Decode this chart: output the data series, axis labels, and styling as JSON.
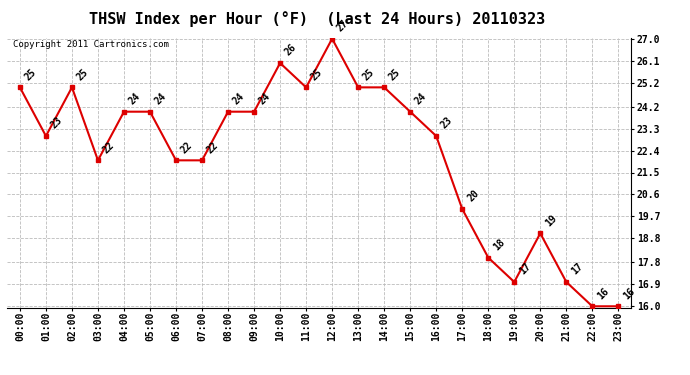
{
  "title": "THSW Index per Hour (°F)  (Last 24 Hours) 20110323",
  "copyright": "Copyright 2011 Cartronics.com",
  "hours": [
    "00:00",
    "01:00",
    "02:00",
    "03:00",
    "04:00",
    "05:00",
    "06:00",
    "07:00",
    "08:00",
    "09:00",
    "10:00",
    "11:00",
    "12:00",
    "13:00",
    "14:00",
    "15:00",
    "16:00",
    "17:00",
    "18:00",
    "19:00",
    "20:00",
    "21:00",
    "22:00",
    "23:00"
  ],
  "values": [
    25,
    23,
    25,
    22,
    24,
    24,
    22,
    22,
    24,
    24,
    26,
    25,
    27,
    25,
    25,
    24,
    23,
    20,
    18,
    17,
    19,
    17,
    16,
    16
  ],
  "ylim_min": 16.0,
  "ylim_max": 27.0,
  "yticks": [
    16.0,
    16.9,
    17.8,
    18.8,
    19.7,
    20.6,
    21.5,
    22.4,
    23.3,
    24.2,
    25.2,
    26.1,
    27.0
  ],
  "line_color": "#dd0000",
  "marker_color": "#dd0000",
  "bg_color": "#ffffff",
  "grid_color": "#bbbbbb",
  "title_fontsize": 11,
  "label_fontsize": 7,
  "tick_fontsize": 7,
  "copyright_fontsize": 6.5
}
